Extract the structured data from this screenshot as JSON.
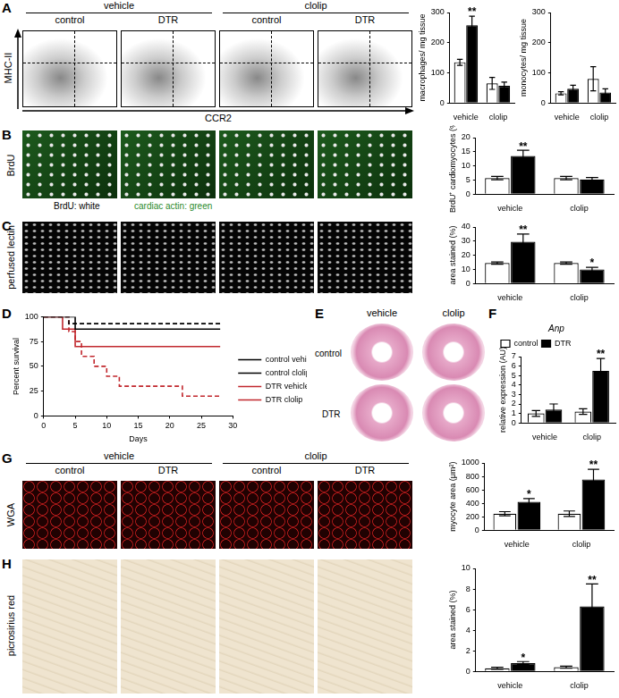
{
  "figure": [
    {
      "letter": "A",
      "groups": [
        "vehicle",
        "clolip"
      ],
      "columns": [
        "control",
        "DTR",
        "control",
        "DTR"
      ],
      "x_axis": "CCR2",
      "y_axis": "MHC-II"
    },
    {
      "letter": "B",
      "row_label": "BrdU",
      "caption": [
        "BrdU: white",
        "cardiac actin: green"
      ]
    },
    {
      "letter": "C",
      "row_label": "perfused lectin"
    },
    {
      "letter": "D"
    },
    {
      "letter": "E",
      "columns": [
        "vehicle",
        "clolip"
      ],
      "rows": [
        "control",
        "DTR"
      ]
    },
    {
      "letter": "F"
    },
    {
      "letter": "G",
      "groups": [
        "vehicle",
        "clolip"
      ],
      "columns": [
        "control",
        "DTR",
        "control",
        "DTR"
      ],
      "row_label": "WGA"
    },
    {
      "letter": "H",
      "row_label": "picrosirius red"
    }
  ],
  "chart_data": [
    {
      "type": "bar",
      "y_label": "macrophages/ mg tissue",
      "categories": [
        "vehicle",
        "clolip"
      ],
      "series": [
        {
          "name": "control",
          "color": "#ffffff",
          "values": [
            135,
            65
          ],
          "errors": [
            10,
            20
          ]
        },
        {
          "name": "DTR",
          "color": "#000000",
          "values": [
            258,
            57
          ],
          "errors": [
            30,
            12
          ],
          "annotations": [
            "**",
            null
          ]
        }
      ],
      "ylim": [
        0,
        300
      ],
      "yticks": [
        0,
        100,
        200,
        300
      ]
    },
    {
      "type": "bar",
      "y_label": "monocytes/ mg tissue",
      "categories": [
        "vehicle",
        "clolip"
      ],
      "series": [
        {
          "name": "control",
          "color": "#ffffff",
          "values": [
            32,
            80
          ],
          "errors": [
            5,
            40
          ]
        },
        {
          "name": "DTR",
          "color": "#000000",
          "values": [
            47,
            35
          ],
          "errors": [
            12,
            12
          ]
        }
      ],
      "ylim": [
        0,
        300
      ],
      "yticks": [
        0,
        100,
        200,
        300
      ]
    },
    {
      "type": "bar",
      "y_label": "BrdU⁺ cardiomyocytes (%)",
      "categories": [
        "vehicle",
        "clolip"
      ],
      "series": [
        {
          "name": "control",
          "color": "#ffffff",
          "values": [
            5.7,
            5.7
          ],
          "errors": [
            0.6,
            0.6
          ]
        },
        {
          "name": "DTR",
          "color": "#000000",
          "values": [
            13.5,
            5.2
          ],
          "errors": [
            2,
            0.7
          ],
          "annotations": [
            "**",
            null
          ]
        }
      ],
      "ylim": [
        0,
        20
      ],
      "yticks": [
        0,
        5,
        10,
        15,
        20
      ]
    },
    {
      "type": "bar",
      "y_label": "area stained (%)",
      "categories": [
        "vehicle",
        "clolip"
      ],
      "series": [
        {
          "name": "control",
          "color": "#ffffff",
          "values": [
            14.5,
            14.5
          ],
          "errors": [
            0.8,
            0.8
          ]
        },
        {
          "name": "DTR",
          "color": "#000000",
          "values": [
            29.5,
            10
          ],
          "errors": [
            5.5,
            1.5
          ],
          "annotations": [
            "**",
            "*"
          ]
        }
      ],
      "ylim": [
        0,
        40
      ],
      "yticks": [
        0,
        10,
        20,
        30,
        40
      ]
    },
    {
      "type": "line",
      "y_label": "Percent survival",
      "x_label": "Days",
      "legend": "right",
      "series": [
        {
          "name": "control vehicle",
          "color": "#000000",
          "line_style": "solid",
          "x": [
            0,
            5,
            28
          ],
          "values": [
            100,
            87.5,
            87.5
          ]
        },
        {
          "name": "control clolip",
          "color": "#000000",
          "line_style": "dashed",
          "x": [
            0,
            4,
            28
          ],
          "values": [
            100,
            93,
            93
          ]
        },
        {
          "name": "DTR vehicle",
          "color": "#c1272d",
          "line_style": "solid",
          "x": [
            0,
            3,
            5,
            28
          ],
          "values": [
            100,
            87.5,
            70,
            70
          ]
        },
        {
          "name": "DTR clolip",
          "color": "#c1272d",
          "line_style": "dashed",
          "x": [
            0,
            4,
            5,
            6,
            8,
            10,
            12,
            22,
            28
          ],
          "values": [
            100,
            85,
            75,
            60,
            50,
            40,
            30,
            20,
            20
          ]
        }
      ],
      "xlim": [
        0,
        30
      ],
      "xticks": [
        0,
        5,
        10,
        15,
        20,
        25,
        30
      ],
      "ylim": [
        0,
        100
      ],
      "yticks": [
        0,
        25,
        50,
        75,
        100
      ]
    },
    {
      "type": "bar",
      "title": "Anp",
      "y_label": "relative expression (AU)",
      "categories": [
        "vehicle",
        "clolip"
      ],
      "legend": "top-left",
      "series": [
        {
          "name": "control",
          "color": "#ffffff",
          "values": [
            1.0,
            1.2
          ],
          "errors": [
            0.3,
            0.3
          ]
        },
        {
          "name": "DTR",
          "color": "#000000",
          "values": [
            1.4,
            5.5
          ],
          "errors": [
            0.6,
            1.3
          ],
          "annotations": [
            null,
            "**"
          ]
        }
      ],
      "ylim": [
        0,
        7
      ],
      "yticks": [
        0,
        1,
        2,
        3,
        4,
        5,
        6,
        7
      ]
    },
    {
      "type": "bar",
      "y_label": "myocyte area (μm²)",
      "categories": [
        "vehicle",
        "clolip"
      ],
      "series": [
        {
          "name": "control",
          "color": "#ffffff",
          "values": [
            245,
            245
          ],
          "errors": [
            30,
            40
          ]
        },
        {
          "name": "DTR",
          "color": "#000000",
          "values": [
            420,
            755
          ],
          "errors": [
            50,
            150
          ],
          "annotations": [
            "*",
            "**"
          ]
        }
      ],
      "ylim": [
        0,
        1000
      ],
      "yticks": [
        0,
        200,
        400,
        600,
        800,
        1000
      ]
    },
    {
      "type": "bar",
      "y_label": "area stained (%)",
      "categories": [
        "vehicle",
        "clolip"
      ],
      "series": [
        {
          "name": "control",
          "color": "#ffffff",
          "values": [
            0.3,
            0.4
          ],
          "errors": [
            0.1,
            0.1
          ]
        },
        {
          "name": "DTR",
          "color": "#000000",
          "values": [
            0.8,
            6.3
          ],
          "errors": [
            0.15,
            2.2
          ],
          "annotations": [
            "*",
            "**"
          ]
        }
      ],
      "ylim": [
        0,
        10
      ],
      "yticks": [
        0,
        2,
        4,
        6,
        8,
        10
      ]
    }
  ]
}
